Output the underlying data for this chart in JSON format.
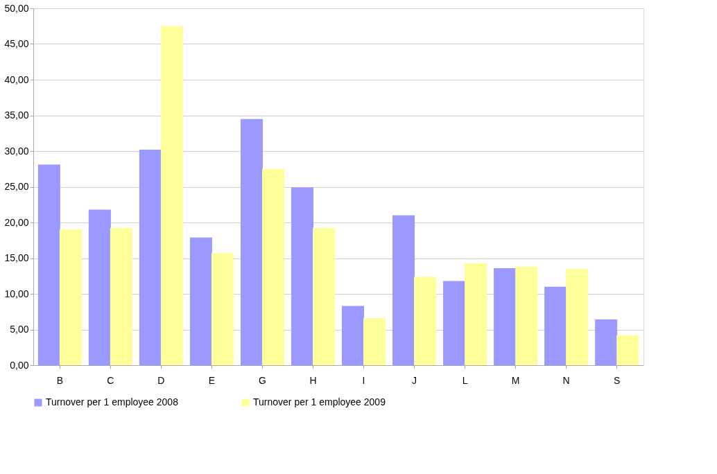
{
  "chart_data": {
    "type": "bar",
    "categories": [
      "B",
      "C",
      "D",
      "E",
      "G",
      "H",
      "I",
      "J",
      "L",
      "M",
      "N",
      "S"
    ],
    "series": [
      {
        "name": "Turnover per 1 employee 2008",
        "color": "#9999ff",
        "values": [
          28.1,
          21.8,
          30.2,
          17.9,
          34.5,
          24.9,
          8.3,
          21.0,
          11.8,
          13.6,
          11.0,
          6.4
        ]
      },
      {
        "name": "Turnover per 1 employee 2009",
        "color": "#ffff99",
        "values": [
          19.0,
          19.2,
          47.5,
          15.7,
          27.5,
          19.2,
          6.6,
          12.4,
          14.3,
          13.8,
          13.5,
          4.2
        ]
      }
    ],
    "ylim": [
      0,
      50
    ],
    "yticks": [
      {
        "value": 0,
        "label": "0,00"
      },
      {
        "value": 5,
        "label": "5,00"
      },
      {
        "value": 10,
        "label": "10,00"
      },
      {
        "value": 15,
        "label": "15,00"
      },
      {
        "value": 20,
        "label": "20,00"
      },
      {
        "value": 25,
        "label": "25,00"
      },
      {
        "value": 30,
        "label": "30,00"
      },
      {
        "value": 35,
        "label": "35,00"
      },
      {
        "value": 40,
        "label": "40,00"
      },
      {
        "value": 45,
        "label": "45,00"
      },
      {
        "value": 50,
        "label": "50,00"
      }
    ],
    "grid": "y",
    "legend": "bottom"
  }
}
